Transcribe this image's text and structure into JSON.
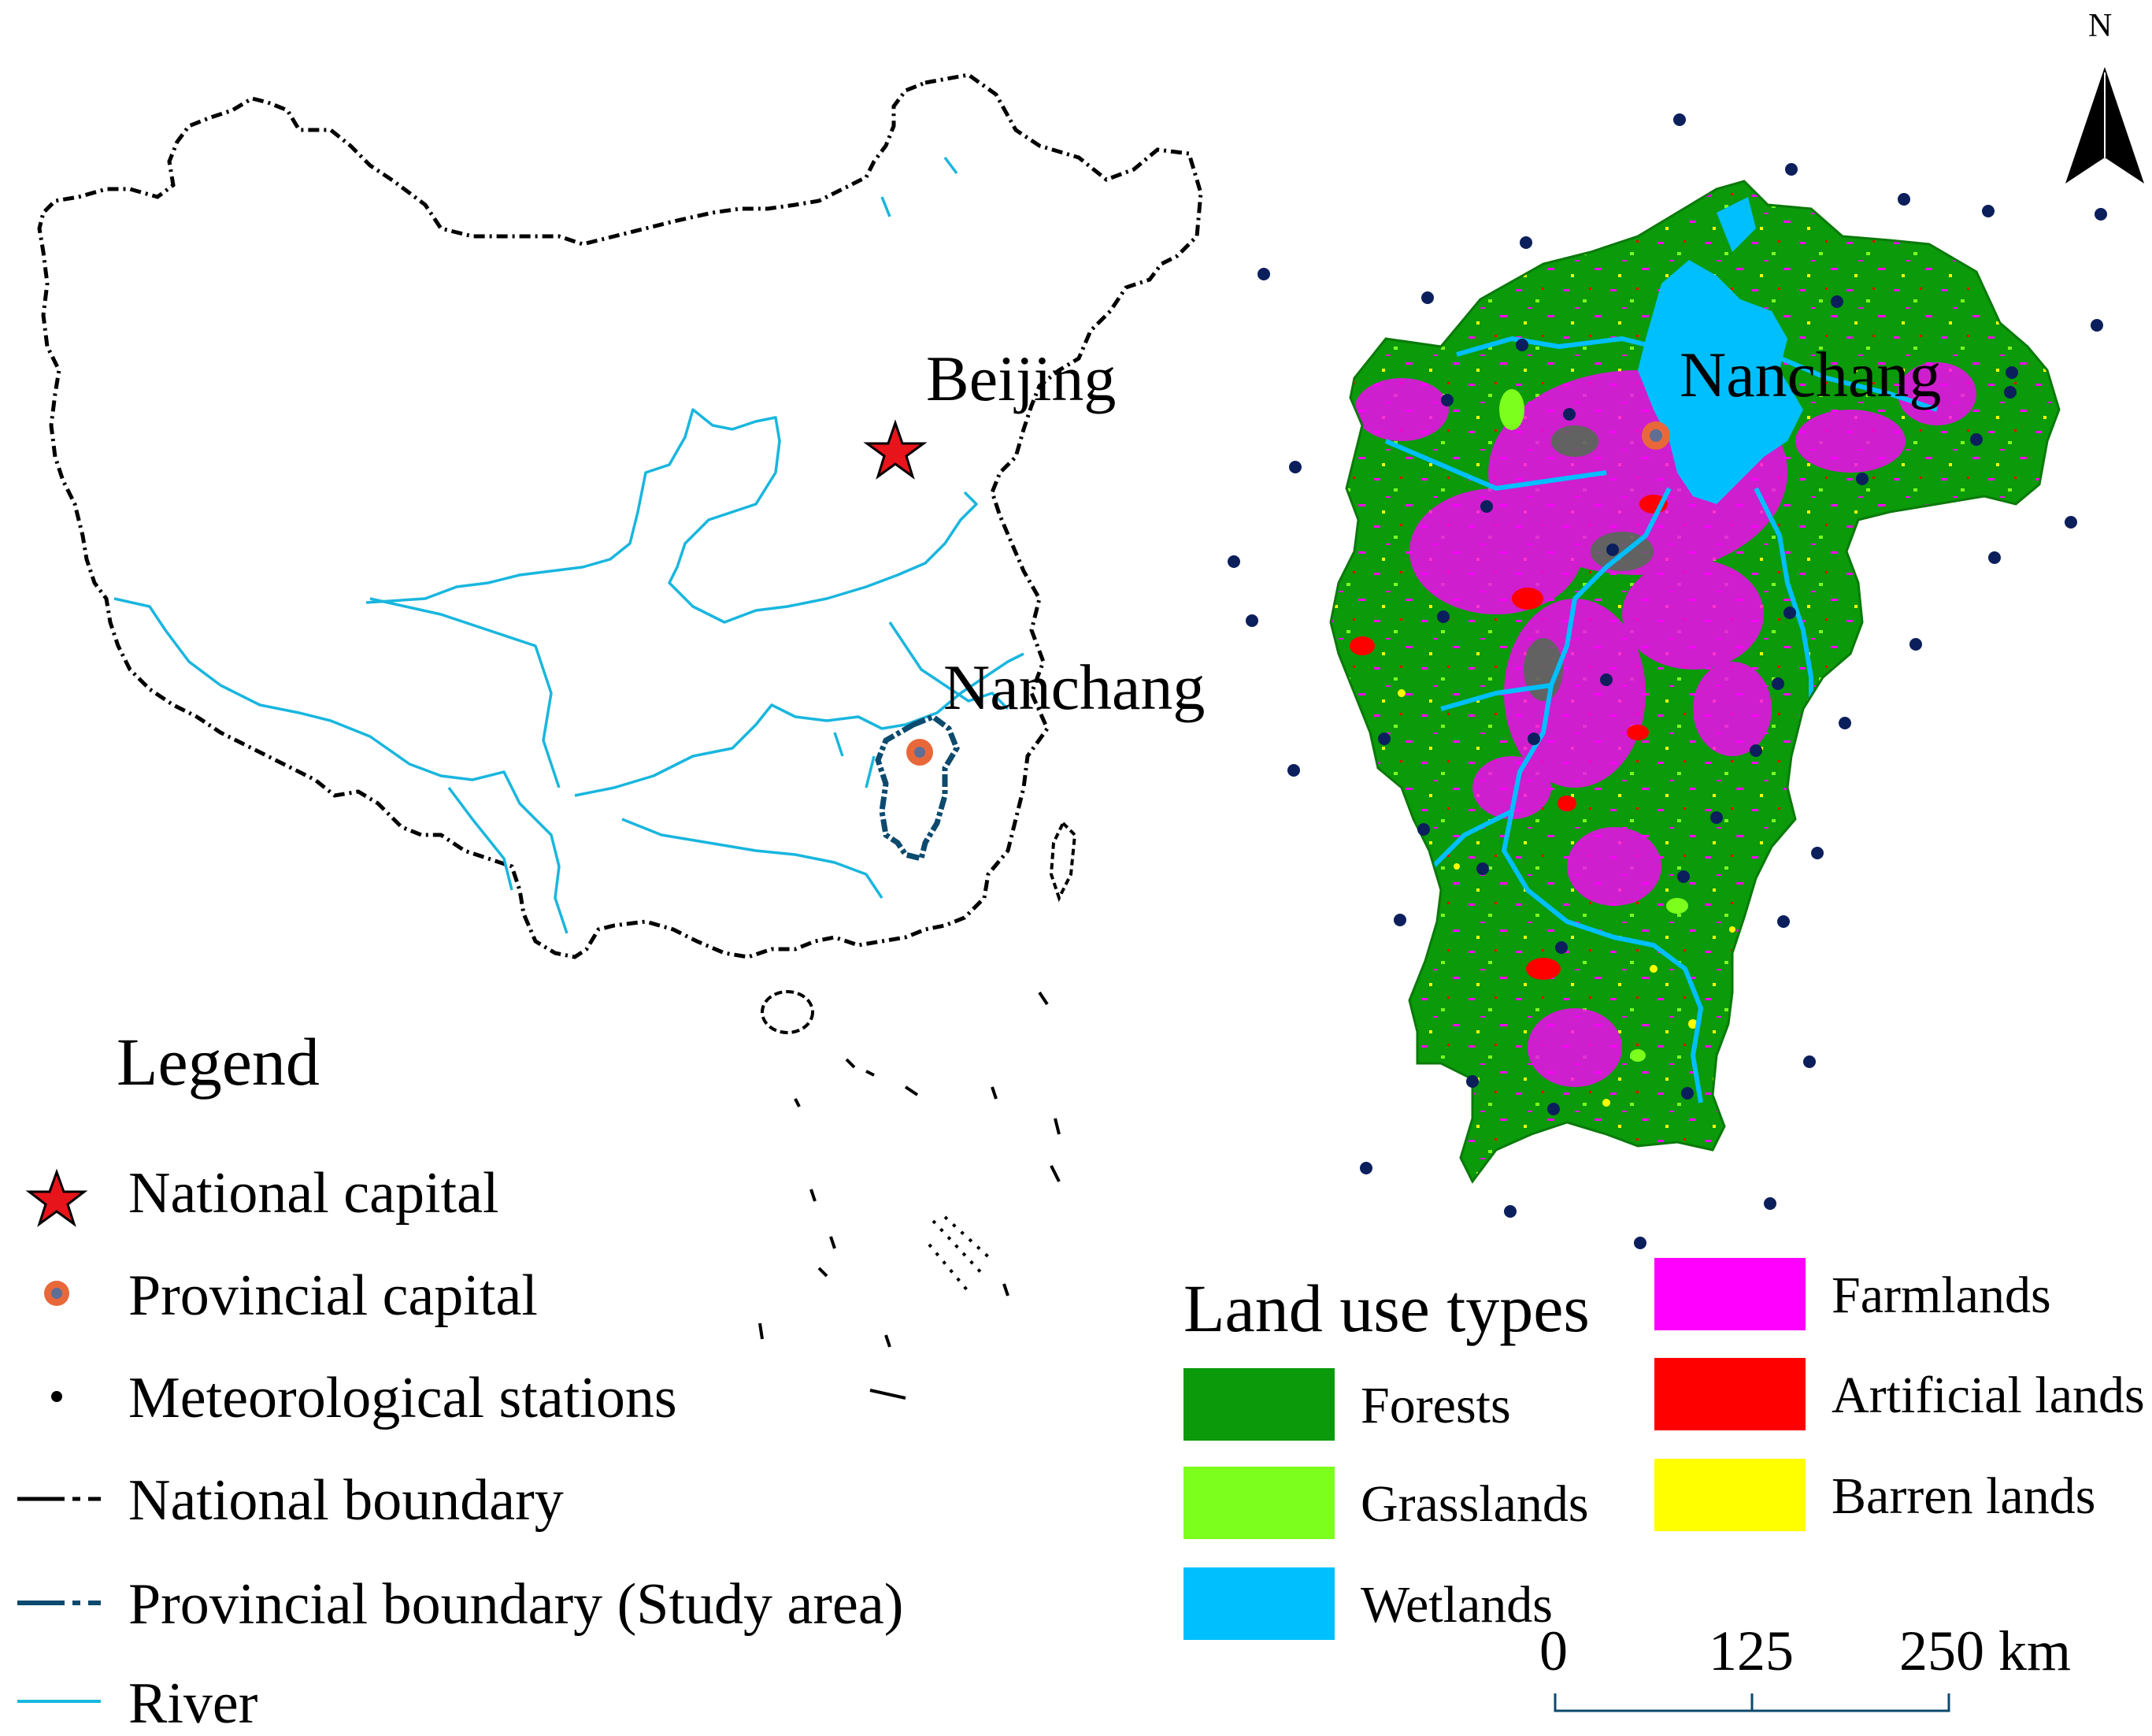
{
  "north_arrow": {
    "label": "N"
  },
  "china_map": {
    "capital_label": "Beijing",
    "province_capital_label": "Nanchang"
  },
  "study_map": {
    "capital_label": "Nanchang"
  },
  "legend": {
    "title": "Legend",
    "items": [
      {
        "symbol": "star-icon",
        "label": "National capital",
        "color": "#e8141b"
      },
      {
        "symbol": "ring-dot-icon",
        "label": "Provincial capital",
        "color": "#e8683a"
      },
      {
        "symbol": "dot-icon",
        "label": "Meteorological stations",
        "color": "#0b1f5c"
      },
      {
        "symbol": "dash-line-icon",
        "label": "National boundary",
        "color": "#000000"
      },
      {
        "symbol": "dash-line-icon",
        "label": "Provincial boundary (Study area)",
        "color": "#0c4a6e"
      },
      {
        "symbol": "line-icon",
        "label": "River",
        "color": "#19b6de"
      }
    ]
  },
  "land_use": {
    "title": "Land use types",
    "types": [
      {
        "label": "Forests",
        "color": "#0a9a0a"
      },
      {
        "label": "Grasslands",
        "color": "#7cff1c"
      },
      {
        "label": "Wetlands",
        "color": "#00bfff"
      },
      {
        "label": "Farmlands",
        "color": "#ff00ff"
      },
      {
        "label": "Artificial lands",
        "color": "#ff0000"
      },
      {
        "label": "Barren lands",
        "color": "#ffff00"
      }
    ]
  },
  "scale_bar": {
    "ticks": [
      "0",
      "125",
      "250 km"
    ]
  }
}
